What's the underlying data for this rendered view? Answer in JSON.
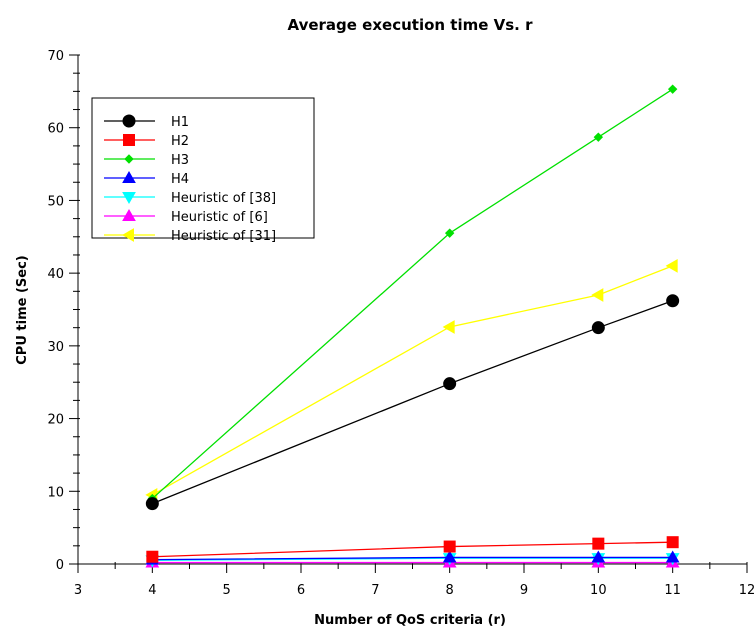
{
  "chart_data": {
    "type": "line",
    "title": "Average execution time Vs. r",
    "xlabel": "Number of QoS criteria (r)",
    "ylabel": "CPU time (Sec)",
    "xlim": [
      3,
      12
    ],
    "ylim": [
      0,
      70
    ],
    "x_ticks": [
      3,
      4,
      5,
      6,
      7,
      8,
      9,
      10,
      11,
      12
    ],
    "y_ticks": [
      0,
      10,
      20,
      30,
      40,
      50,
      60,
      70
    ],
    "grid": false,
    "legend_position": "top-left",
    "x": [
      4,
      8,
      10,
      11
    ],
    "series": [
      {
        "name": "H1",
        "values": [
          8.3,
          24.8,
          32.5,
          36.2
        ],
        "color": "#000000",
        "marker": "circle"
      },
      {
        "name": "H2",
        "values": [
          1.0,
          2.4,
          2.8,
          3.0
        ],
        "color": "#ff0000",
        "marker": "square"
      },
      {
        "name": "H3",
        "values": [
          9.0,
          45.5,
          58.7,
          65.3
        ],
        "color": "#00e000",
        "marker": "diamond"
      },
      {
        "name": "H4",
        "values": [
          0.6,
          0.9,
          0.9,
          0.9
        ],
        "color": "#0000ff",
        "marker": "triangle-up"
      },
      {
        "name": "Heuristic of [38]",
        "values": [
          0.5,
          0.8,
          0.8,
          0.8
        ],
        "color": "#00ffff",
        "marker": "triangle-down"
      },
      {
        "name": "Heuristic of [6]",
        "values": [
          0.2,
          0.2,
          0.2,
          0.2
        ],
        "color": "#ff00ff",
        "marker": "triangle-up"
      },
      {
        "name": "Heuristic of [31]",
        "values": [
          9.5,
          32.6,
          37.0,
          41.0
        ],
        "color": "#ffff00",
        "marker": "triangle-left"
      }
    ]
  }
}
